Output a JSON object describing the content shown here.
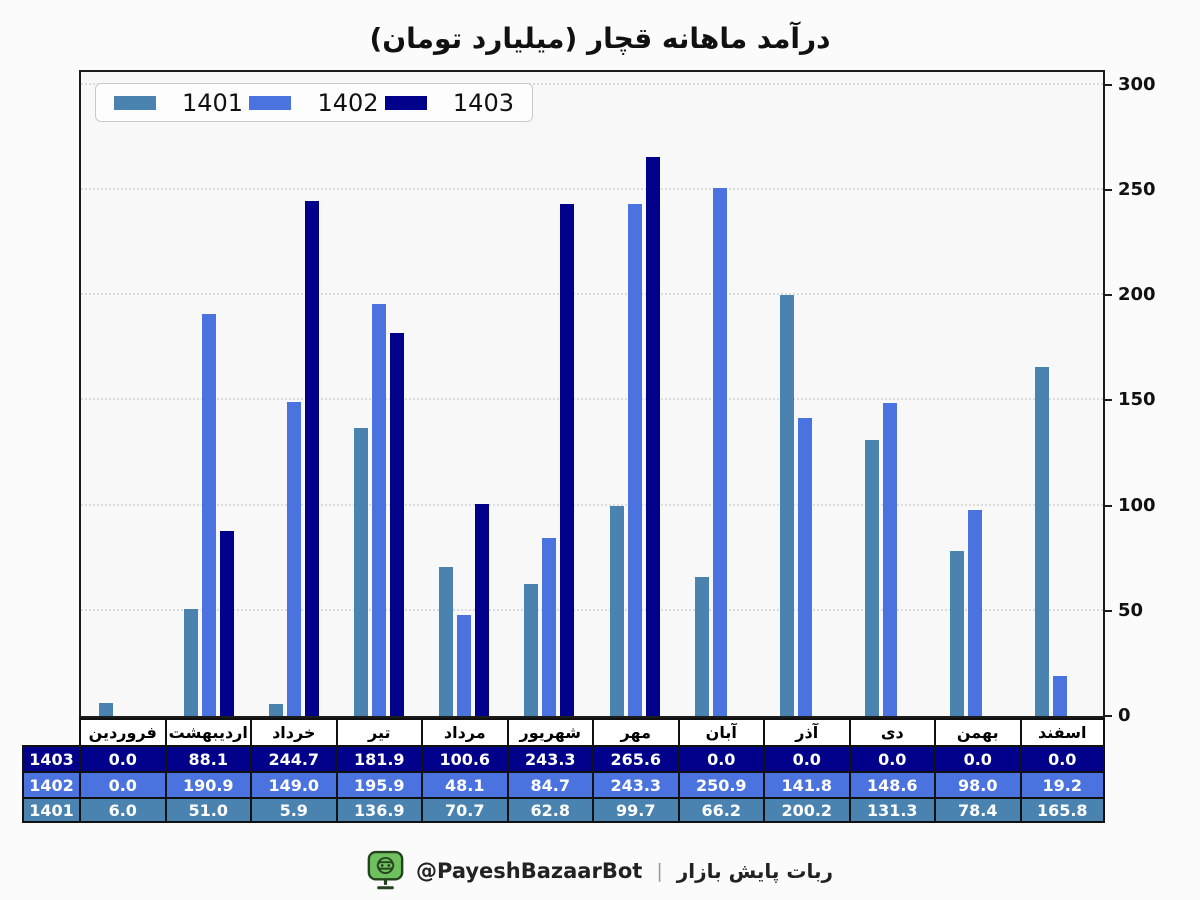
{
  "title": "درآمد ماهانه قچار (میلیارد تومان)",
  "chart_data": {
    "type": "bar",
    "title": "درآمد ماهانه قچار (میلیارد تومان)",
    "categories": [
      "فروردین",
      "اردیبهشت",
      "خرداد",
      "تیر",
      "مرداد",
      "شهریور",
      "مهر",
      "آبان",
      "آذر",
      "دی",
      "بهمن",
      "اسفند"
    ],
    "series": [
      {
        "name": "1401",
        "color": "#4a82b0",
        "values": [
          6.0,
          51.0,
          5.9,
          136.9,
          70.7,
          62.8,
          99.7,
          66.2,
          200.2,
          131.3,
          78.4,
          165.8
        ]
      },
      {
        "name": "1402",
        "color": "#4b73e0",
        "values": [
          0.0,
          190.9,
          149.0,
          195.9,
          48.1,
          84.7,
          243.3,
          250.9,
          141.8,
          148.6,
          98.0,
          19.2
        ]
      },
      {
        "name": "1403",
        "color": "#00008b",
        "values": [
          0.0,
          88.1,
          244.7,
          181.9,
          100.6,
          243.3,
          265.6,
          0.0,
          0.0,
          0.0,
          0.0,
          0.0
        ]
      }
    ],
    "xlabel": "",
    "ylabel": "",
    "ylim": [
      0,
      306
    ],
    "yticks": [
      0,
      50,
      100,
      150,
      200,
      250,
      300
    ],
    "yaxis_side": "right",
    "grid": "horizontal-dotted",
    "legend_position": "upper-left",
    "legend_order": [
      "1401",
      "1402",
      "1403"
    ]
  },
  "table": {
    "row_order": [
      "1403",
      "1402",
      "1401"
    ],
    "row_colors": {
      "1403": "#00008b",
      "1402": "#4b73e0",
      "1401": "#4a82b0"
    }
  },
  "footer": {
    "handle": "@PayeshBazaarBot",
    "separator": "|",
    "label": "ربات پایش بازار",
    "icon_green": "#6fc05f",
    "icon_dark": "#24431f"
  }
}
